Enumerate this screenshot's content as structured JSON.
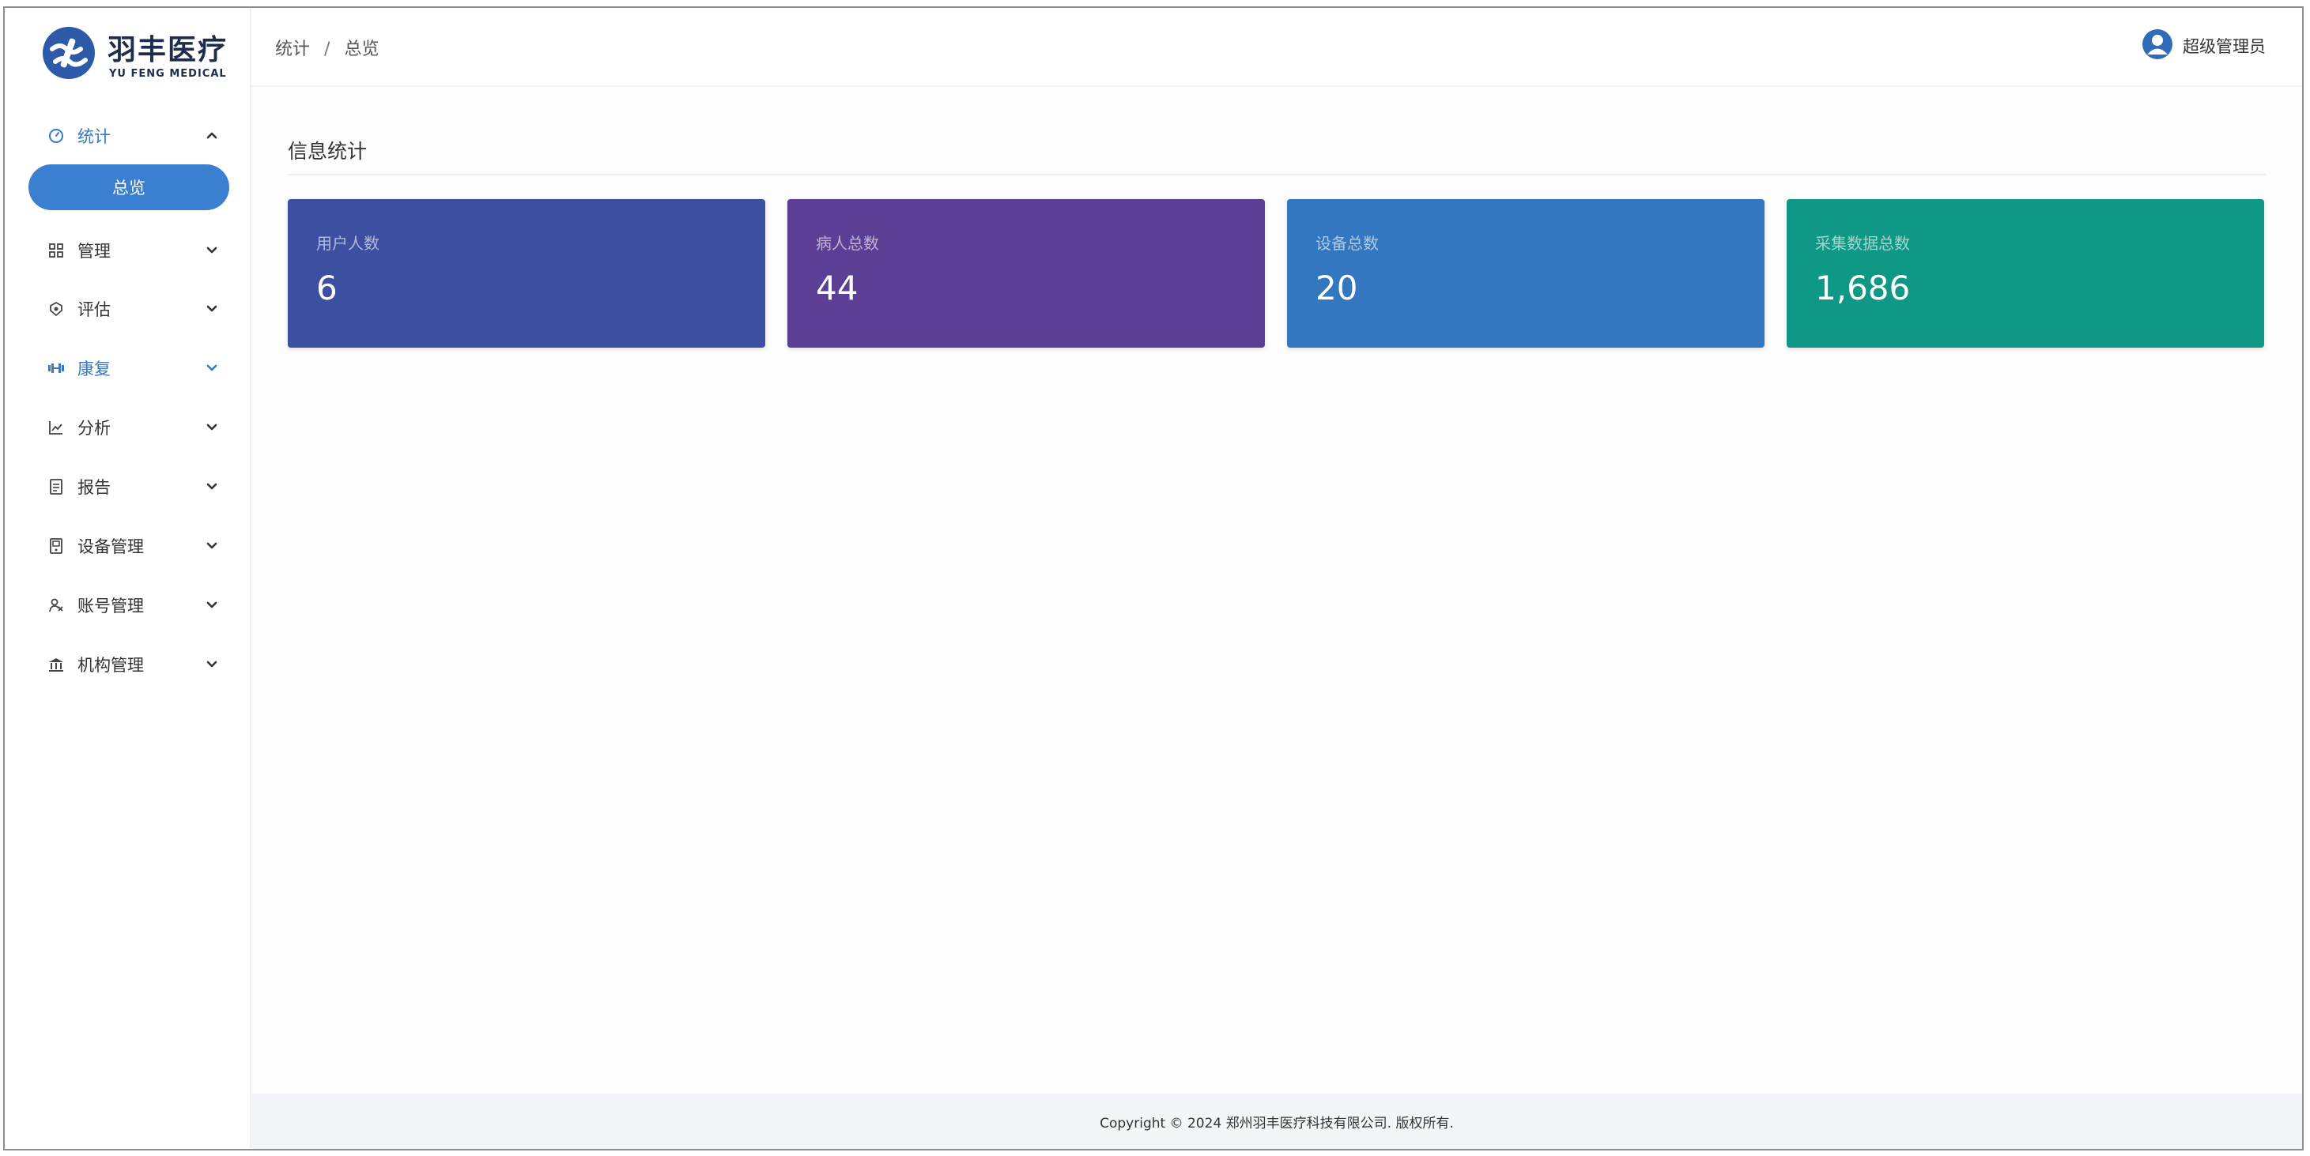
{
  "brand": {
    "name_cn": "羽丰医疗",
    "name_en": "YU FENG MEDICAL",
    "color": "#2c5aa8"
  },
  "header": {
    "breadcrumb": [
      "统计",
      "总览"
    ],
    "breadcrumb_separator": "/",
    "user_name": "超级管理员",
    "user_icon": "user-avatar-icon"
  },
  "sidebar": {
    "items": [
      {
        "label": "统计",
        "icon": "dashboard-gauge-icon",
        "expanded": true
      },
      {
        "label": "管理",
        "icon": "grid-apps-icon",
        "expanded": false
      },
      {
        "label": "评估",
        "icon": "assessment-icon",
        "expanded": false
      },
      {
        "label": "康复",
        "icon": "rehab-dumbbell-icon",
        "expanded": false
      },
      {
        "label": "分析",
        "icon": "line-chart-icon",
        "expanded": false
      },
      {
        "label": "报告",
        "icon": "report-doc-icon",
        "expanded": false
      },
      {
        "label": "设备管理",
        "icon": "device-icon",
        "expanded": false
      },
      {
        "label": "账号管理",
        "icon": "account-icon",
        "expanded": false
      },
      {
        "label": "机构管理",
        "icon": "institution-icon",
        "expanded": false
      }
    ],
    "sub_item_active": "总览"
  },
  "main": {
    "section_title": "信息统计",
    "cards": [
      {
        "label": "用户人数",
        "value": "6",
        "color": "#3c4fa0"
      },
      {
        "label": "病人总数",
        "value": "44",
        "color": "#5c3e95"
      },
      {
        "label": "设备总数",
        "value": "20",
        "color": "#3277c0"
      },
      {
        "label": "采集数据总数",
        "value": "1,686",
        "color": "#0f9886"
      }
    ]
  },
  "footer": {
    "copyright": "Copyright © 2024 郑州羽丰医疗科技有限公司. 版权所有."
  }
}
